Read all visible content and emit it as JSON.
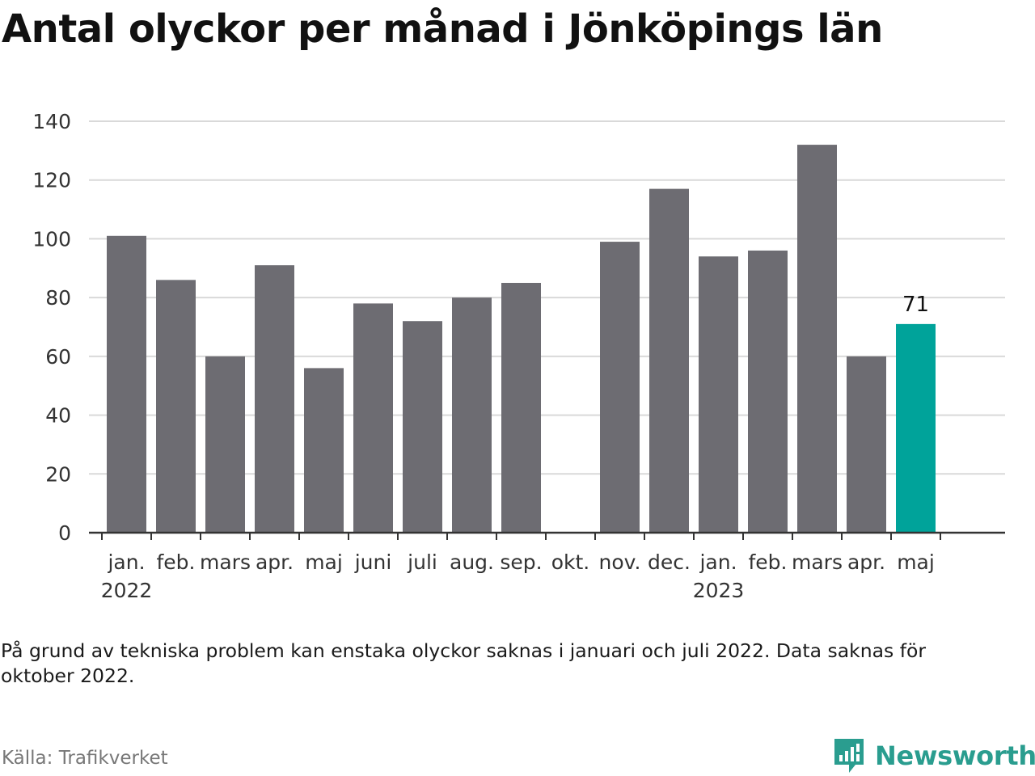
{
  "title": "Antal olyckor per månad i Jönköpings län",
  "note": "På grund av tekniska problem kan enstaka olyckor saknas i januari och juli 2022. Data saknas för oktober 2022.",
  "source": "Källa: Trafikverket",
  "brand": {
    "name": "Newsworthy",
    "icon": "newsworthy-logo-icon",
    "color": "#2a9d8f"
  },
  "chart_data": {
    "type": "bar",
    "categories": [
      "jan.",
      "feb.",
      "mars",
      "apr.",
      "maj",
      "juni",
      "juli",
      "aug.",
      "sep.",
      "okt.",
      "nov.",
      "dec.",
      "jan.",
      "feb.",
      "mars",
      "apr.",
      "maj"
    ],
    "year_labels": [
      {
        "index": 0,
        "label": "2022"
      },
      {
        "index": 12,
        "label": "2023"
      }
    ],
    "values": [
      101,
      86,
      60,
      91,
      56,
      78,
      72,
      80,
      85,
      null,
      99,
      117,
      94,
      96,
      132,
      60,
      71
    ],
    "highlight_index": 16,
    "data_labels": [
      {
        "index": 16,
        "label": "71"
      }
    ],
    "ylim": [
      0,
      140
    ],
    "yticks": [
      0,
      20,
      40,
      60,
      80,
      100,
      120,
      140
    ],
    "xlabel": "",
    "ylabel": "",
    "grid": true,
    "colors": {
      "bar": "#6d6c72",
      "highlight": "#00a39a",
      "grid": "#d9d9d9",
      "axis": "#333333"
    }
  }
}
